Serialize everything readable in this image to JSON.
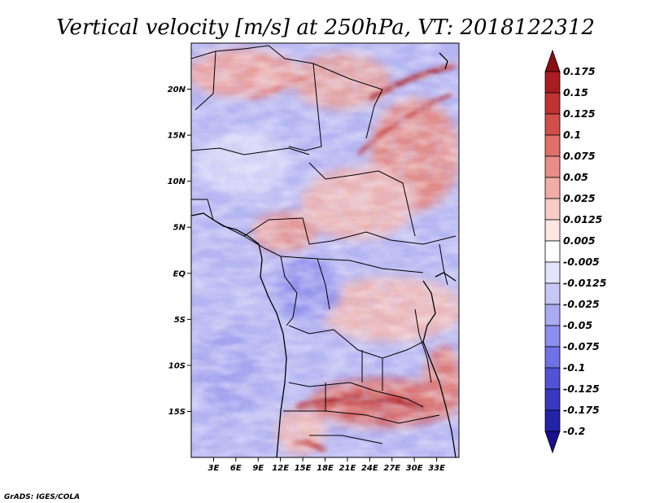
{
  "chart_data": {
    "type": "heatmap",
    "title": "Vertical velocity [m/s] at 250hPa, VT: 2018122312",
    "variable": "Vertical velocity",
    "units": "m/s",
    "level": "250hPa",
    "valid_time": "2018122312",
    "lon_range": [
      0,
      36
    ],
    "lat_range": [
      -20,
      25
    ],
    "x_ticks": [
      {
        "value": 3,
        "label": "3E"
      },
      {
        "value": 6,
        "label": "6E"
      },
      {
        "value": 9,
        "label": "9E"
      },
      {
        "value": 12,
        "label": "12E"
      },
      {
        "value": 15,
        "label": "15E"
      },
      {
        "value": 18,
        "label": "18E"
      },
      {
        "value": 21,
        "label": "21E"
      },
      {
        "value": 24,
        "label": "24E"
      },
      {
        "value": 27,
        "label": "27E"
      },
      {
        "value": 30,
        "label": "30E"
      },
      {
        "value": 33,
        "label": "33E"
      }
    ],
    "y_ticks": [
      {
        "value": 20,
        "label": "20N"
      },
      {
        "value": 15,
        "label": "15N"
      },
      {
        "value": 10,
        "label": "10N"
      },
      {
        "value": 5,
        "label": "5N"
      },
      {
        "value": 0,
        "label": "EQ"
      },
      {
        "value": -5,
        "label": "5S"
      },
      {
        "value": -10,
        "label": "10S"
      },
      {
        "value": -15,
        "label": "15S"
      }
    ],
    "colorbar": {
      "labels": [
        "0.175",
        "0.15",
        "0.125",
        "0.1",
        "0.075",
        "0.05",
        "0.025",
        "0.0125",
        "0.005",
        "-0.005",
        "-0.0125",
        "-0.025",
        "-0.05",
        "-0.075",
        "-0.1",
        "-0.125",
        "-0.175",
        "-0.2"
      ],
      "colors": [
        "#8b0d12",
        "#a91c21",
        "#c0332f",
        "#d14e49",
        "#df6f68",
        "#e98e87",
        "#f1aca5",
        "#f8cbc6",
        "#fde6e3",
        "#ffffff",
        "#e3e3fb",
        "#c7c7f7",
        "#aaaaf3",
        "#8d8def",
        "#7070e6",
        "#5252d6",
        "#3838c2",
        "#2323a8",
        "#1a0f8c"
      ]
    },
    "features": [
      "country borders",
      "coastlines"
    ],
    "credit": "GrADS: IGES/COLA"
  }
}
